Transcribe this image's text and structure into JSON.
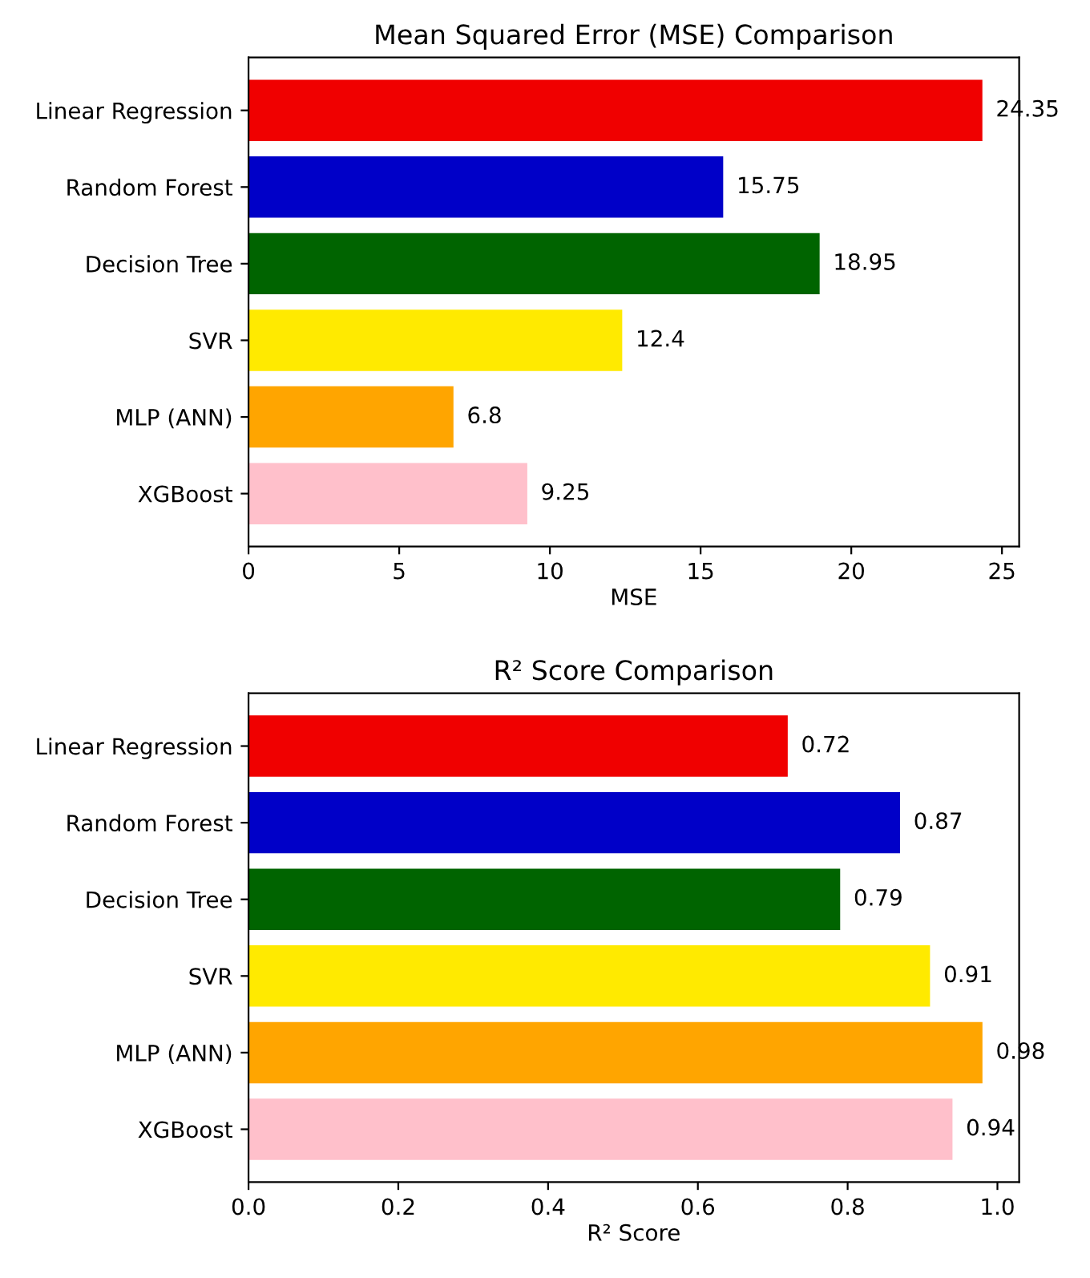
{
  "chart_data": [
    {
      "type": "bar",
      "orientation": "horizontal",
      "title": "Mean Squared Error (MSE) Comparison",
      "xlabel": "MSE",
      "categories": [
        "Linear Regression",
        "Random Forest",
        "Decision Tree",
        "SVR",
        "MLP (ANN)",
        "XGBoost"
      ],
      "values": [
        24.35,
        15.75,
        18.95,
        12.4,
        6.8,
        9.25
      ],
      "colors": [
        "#f00000",
        "#0000c8",
        "#006400",
        "#ffea00",
        "#ffa500",
        "#ffc0cb"
      ],
      "xlim": [
        0,
        25.57
      ],
      "xticks": [
        0,
        5,
        10,
        15,
        20,
        25
      ],
      "data_labels": true,
      "grid": false,
      "legend": false
    },
    {
      "type": "bar",
      "orientation": "horizontal",
      "title": "R² Score Comparison",
      "xlabel": "R² Score",
      "categories": [
        "Linear Regression",
        "Random Forest",
        "Decision Tree",
        "SVR",
        "MLP (ANN)",
        "XGBoost"
      ],
      "values": [
        0.72,
        0.87,
        0.79,
        0.91,
        0.98,
        0.94
      ],
      "colors": [
        "#f00000",
        "#0000c8",
        "#006400",
        "#ffea00",
        "#ffa500",
        "#ffc0cb"
      ],
      "xlim": [
        0,
        1.029
      ],
      "xticks": [
        {
          "value": 0,
          "label": "0.0"
        },
        0.2,
        0.4,
        0.6,
        0.8,
        {
          "value": 1,
          "label": "1.0"
        }
      ],
      "data_labels": true,
      "grid": false,
      "legend": false
    }
  ]
}
